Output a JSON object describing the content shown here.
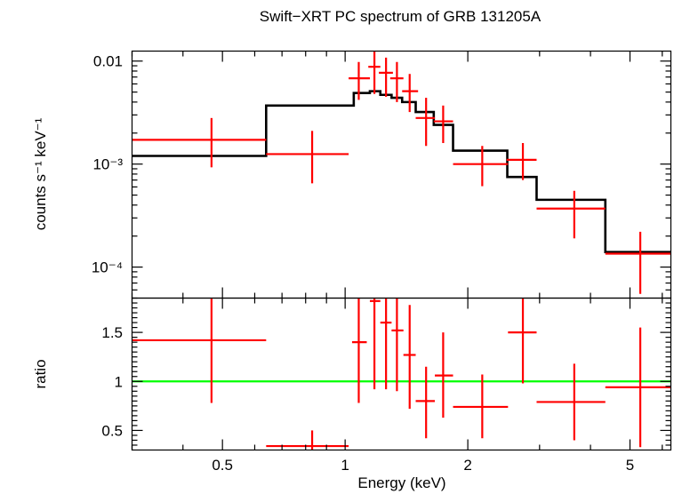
{
  "chart_data": [
    {
      "panel": "spectrum",
      "type": "scatter",
      "title": "Swift−XRT PC spectrum of GRB 131205A",
      "ylabel": "counts s⁻¹ keV⁻¹",
      "xlabel": "",
      "xscale": "log",
      "yscale": "log",
      "xlim": [
        0.3,
        6.3
      ],
      "ylim": [
        5e-05,
        0.0125
      ],
      "y_ticks": [
        {
          "value": 0.01,
          "label": "0.01"
        },
        {
          "value": 0.001,
          "label": "10⁻³"
        },
        {
          "value": 0.0001,
          "label": "10⁻⁴"
        }
      ],
      "series": [
        {
          "name": "",
          "color": "#ff0000",
          "style": "error-crosses",
          "points": [
            {
              "x": 0.47,
              "xlo": 0.3,
              "xhi": 0.64,
              "y": 0.00172,
              "ylo": 0.00093,
              "yhi": 0.0028
            },
            {
              "x": 0.83,
              "xlo": 0.64,
              "xhi": 1.02,
              "y": 0.00125,
              "ylo": 0.00065,
              "yhi": 0.0021
            },
            {
              "x": 1.08,
              "xlo": 1.02,
              "xhi": 1.15,
              "y": 0.0068,
              "ylo": 0.0042,
              "yhi": 0.0098
            },
            {
              "x": 1.18,
              "xlo": 1.14,
              "xhi": 1.22,
              "y": 0.0088,
              "ylo": 0.0048,
              "yhi": 0.013
            },
            {
              "x": 1.26,
              "xlo": 1.21,
              "xhi": 1.31,
              "y": 0.0077,
              "ylo": 0.0045,
              "yhi": 0.0108
            },
            {
              "x": 1.34,
              "xlo": 1.29,
              "xhi": 1.39,
              "y": 0.0068,
              "ylo": 0.004,
              "yhi": 0.0098
            },
            {
              "x": 1.44,
              "xlo": 1.38,
              "xhi": 1.51,
              "y": 0.0051,
              "ylo": 0.0032,
              "yhi": 0.0075
            },
            {
              "x": 1.58,
              "xlo": 1.49,
              "xhi": 1.66,
              "y": 0.0028,
              "ylo": 0.0015,
              "yhi": 0.0044
            },
            {
              "x": 1.74,
              "xlo": 1.65,
              "xhi": 1.84,
              "y": 0.0026,
              "ylo": 0.0016,
              "yhi": 0.0037
            },
            {
              "x": 2.17,
              "xlo": 1.84,
              "xhi": 2.51,
              "y": 0.001,
              "ylo": 0.00061,
              "yhi": 0.0015
            },
            {
              "x": 2.73,
              "xlo": 2.49,
              "xhi": 2.95,
              "y": 0.0011,
              "ylo": 0.0007,
              "yhi": 0.0016
            },
            {
              "x": 3.65,
              "xlo": 2.95,
              "xhi": 4.35,
              "y": 0.00037,
              "ylo": 0.00019,
              "yhi": 0.00055
            },
            {
              "x": 5.3,
              "xlo": 4.35,
              "xhi": 6.3,
              "y": 0.000135,
              "ylo": 5.5e-05,
              "yhi": 0.00022
            }
          ]
        },
        {
          "name": "",
          "color": "#000000",
          "style": "histogram",
          "steps": [
            {
              "x0": 0.3,
              "x1": 0.64,
              "y": 0.0012
            },
            {
              "x0": 0.64,
              "x1": 1.05,
              "y": 0.0037
            },
            {
              "x0": 1.05,
              "x1": 1.15,
              "y": 0.0049
            },
            {
              "x0": 1.15,
              "x1": 1.22,
              "y": 0.0051
            },
            {
              "x0": 1.22,
              "x1": 1.3,
              "y": 0.0047
            },
            {
              "x0": 1.3,
              "x1": 1.38,
              "y": 0.0044
            },
            {
              "x0": 1.38,
              "x1": 1.49,
              "y": 0.004
            },
            {
              "x0": 1.49,
              "x1": 1.65,
              "y": 0.0032
            },
            {
              "x0": 1.65,
              "x1": 1.84,
              "y": 0.0024
            },
            {
              "x0": 1.84,
              "x1": 2.5,
              "y": 0.00135
            },
            {
              "x0": 2.5,
              "x1": 2.95,
              "y": 0.00075
            },
            {
              "x0": 2.95,
              "x1": 4.35,
              "y": 0.00045
            },
            {
              "x0": 4.35,
              "x1": 6.3,
              "y": 0.00014
            }
          ]
        }
      ]
    },
    {
      "panel": "ratio",
      "type": "scatter",
      "xlabel": "Energy (keV)",
      "ylabel": "ratio",
      "xscale": "log",
      "yscale": "linear",
      "xlim": [
        0.3,
        6.3
      ],
      "ylim": [
        0.3,
        1.85
      ],
      "x_ticks": [
        {
          "value": 0.5,
          "label": "0.5"
        },
        {
          "value": 1,
          "label": "1"
        },
        {
          "value": 2,
          "label": "2"
        },
        {
          "value": 5,
          "label": "5"
        }
      ],
      "y_ticks": [
        {
          "value": 0.5,
          "label": "0.5"
        },
        {
          "value": 1,
          "label": "1"
        },
        {
          "value": 1.5,
          "label": "1.5"
        }
      ],
      "reference_line": {
        "y": 1,
        "color": "#00ff00"
      },
      "series": [
        {
          "name": "",
          "color": "#ff0000",
          "style": "error-crosses",
          "points": [
            {
              "x": 0.47,
              "xlo": 0.3,
              "xhi": 0.64,
              "y": 1.42,
              "ylo": 0.78,
              "yhi": 1.85
            },
            {
              "x": 0.83,
              "xlo": 0.64,
              "xhi": 1.02,
              "y": 0.34,
              "ylo": 0.3,
              "yhi": 0.5
            },
            {
              "x": 1.08,
              "xlo": 1.04,
              "xhi": 1.13,
              "y": 1.4,
              "ylo": 0.78,
              "yhi": 1.85
            },
            {
              "x": 1.18,
              "xlo": 1.15,
              "xhi": 1.22,
              "y": 1.82,
              "ylo": 0.92,
              "yhi": 1.85
            },
            {
              "x": 1.26,
              "xlo": 1.22,
              "xhi": 1.3,
              "y": 1.6,
              "ylo": 0.92,
              "yhi": 1.85
            },
            {
              "x": 1.34,
              "xlo": 1.3,
              "xhi": 1.39,
              "y": 1.52,
              "ylo": 0.9,
              "yhi": 1.85
            },
            {
              "x": 1.44,
              "xlo": 1.39,
              "xhi": 1.49,
              "y": 1.27,
              "ylo": 0.72,
              "yhi": 1.78
            },
            {
              "x": 1.58,
              "xlo": 1.49,
              "xhi": 1.66,
              "y": 0.8,
              "ylo": 0.42,
              "yhi": 1.15
            },
            {
              "x": 1.74,
              "xlo": 1.66,
              "xhi": 1.84,
              "y": 1.06,
              "ylo": 0.63,
              "yhi": 1.5
            },
            {
              "x": 2.17,
              "xlo": 1.84,
              "xhi": 2.51,
              "y": 0.74,
              "ylo": 0.42,
              "yhi": 1.07
            },
            {
              "x": 2.73,
              "xlo": 2.51,
              "xhi": 2.95,
              "y": 1.5,
              "ylo": 0.98,
              "yhi": 1.85
            },
            {
              "x": 3.65,
              "xlo": 2.95,
              "xhi": 4.35,
              "y": 0.79,
              "ylo": 0.4,
              "yhi": 1.18
            },
            {
              "x": 5.3,
              "xlo": 4.35,
              "xhi": 6.3,
              "y": 0.94,
              "ylo": 0.33,
              "yhi": 1.55
            }
          ]
        }
      ]
    }
  ]
}
